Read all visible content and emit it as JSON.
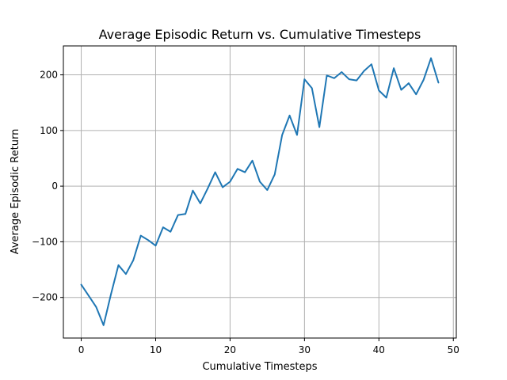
{
  "chart_data": {
    "type": "line",
    "title": "Average Episodic Return vs. Cumulative Timesteps",
    "xlabel": "Cumulative Timesteps",
    "ylabel": "Average Episodic Return",
    "xlim": [
      -2.4,
      50.4
    ],
    "ylim": [
      -273,
      252
    ],
    "xticks": [
      0,
      10,
      20,
      30,
      40,
      50
    ],
    "yticks": [
      -200,
      -100,
      0,
      100,
      200
    ],
    "ytick_labels": [
      "−200",
      "−100",
      "0",
      "100",
      "200"
    ],
    "grid": true,
    "color": "#1f77b4",
    "series": [
      {
        "x": [
          0,
          1,
          2,
          3,
          4,
          5,
          6,
          7,
          8,
          9,
          10,
          11,
          12,
          13,
          14,
          15,
          16,
          17,
          18,
          19,
          20,
          21,
          22,
          23,
          24,
          25,
          26,
          27,
          28,
          29,
          30,
          31,
          32,
          33,
          34,
          35,
          36,
          37,
          38,
          39,
          40,
          41,
          42,
          43,
          44,
          45,
          46,
          47,
          48
        ],
        "values": [
          -177,
          -197,
          -217,
          -250,
          -194,
          -142,
          -158,
          -133,
          -89,
          -97,
          -107,
          -74,
          -82,
          -52,
          -50,
          -8,
          -31,
          -4,
          25,
          -2,
          8,
          31,
          25,
          46,
          8,
          -7,
          21,
          92,
          127,
          92,
          192,
          176,
          106,
          199,
          194,
          205,
          192,
          190,
          207,
          219,
          172,
          159,
          212,
          173,
          185,
          165,
          191,
          230,
          186
        ]
      }
    ]
  }
}
